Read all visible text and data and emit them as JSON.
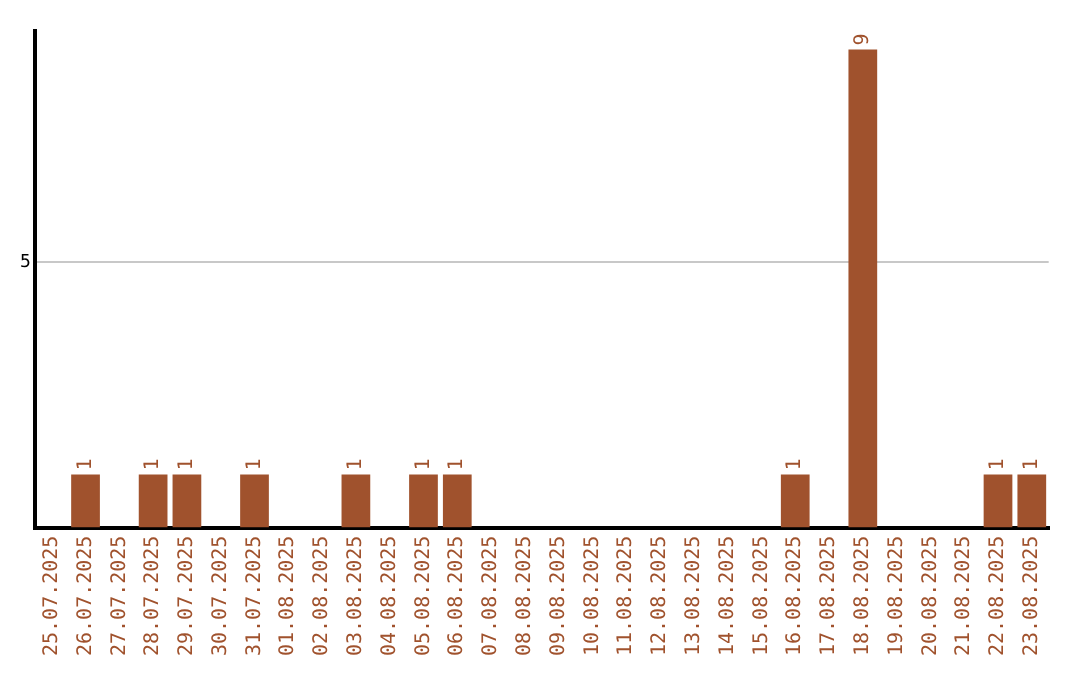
{
  "chart_data": {
    "type": "bar",
    "categories": [
      "25.07.2025",
      "26.07.2025",
      "27.07.2025",
      "28.07.2025",
      "29.07.2025",
      "30.07.2025",
      "31.07.2025",
      "01.08.2025",
      "02.08.2025",
      "03.08.2025",
      "04.08.2025",
      "05.08.2025",
      "06.08.2025",
      "07.08.2025",
      "08.08.2025",
      "09.08.2025",
      "10.08.2025",
      "11.08.2025",
      "12.08.2025",
      "13.08.2025",
      "14.08.2025",
      "15.08.2025",
      "16.08.2025",
      "17.08.2025",
      "18.08.2025",
      "19.08.2025",
      "20.08.2025",
      "21.08.2025",
      "22.08.2025",
      "23.08.2025"
    ],
    "values": [
      0,
      1,
      0,
      1,
      1,
      0,
      1,
      0,
      0,
      1,
      0,
      1,
      1,
      0,
      0,
      0,
      0,
      0,
      0,
      0,
      0,
      0,
      1,
      0,
      9,
      0,
      0,
      0,
      1,
      1
    ],
    "value_labels": [
      null,
      "1",
      null,
      "1",
      "1",
      null,
      "1",
      null,
      null,
      "1",
      null,
      "1",
      "1",
      null,
      null,
      null,
      null,
      null,
      null,
      null,
      null,
      null,
      "1",
      null,
      "9",
      null,
      null,
      null,
      "1",
      "1"
    ],
    "color": "#a0522d",
    "ylim": [
      0,
      9.35
    ],
    "yticks": [
      5
    ],
    "grid": "y",
    "legend": false
  }
}
